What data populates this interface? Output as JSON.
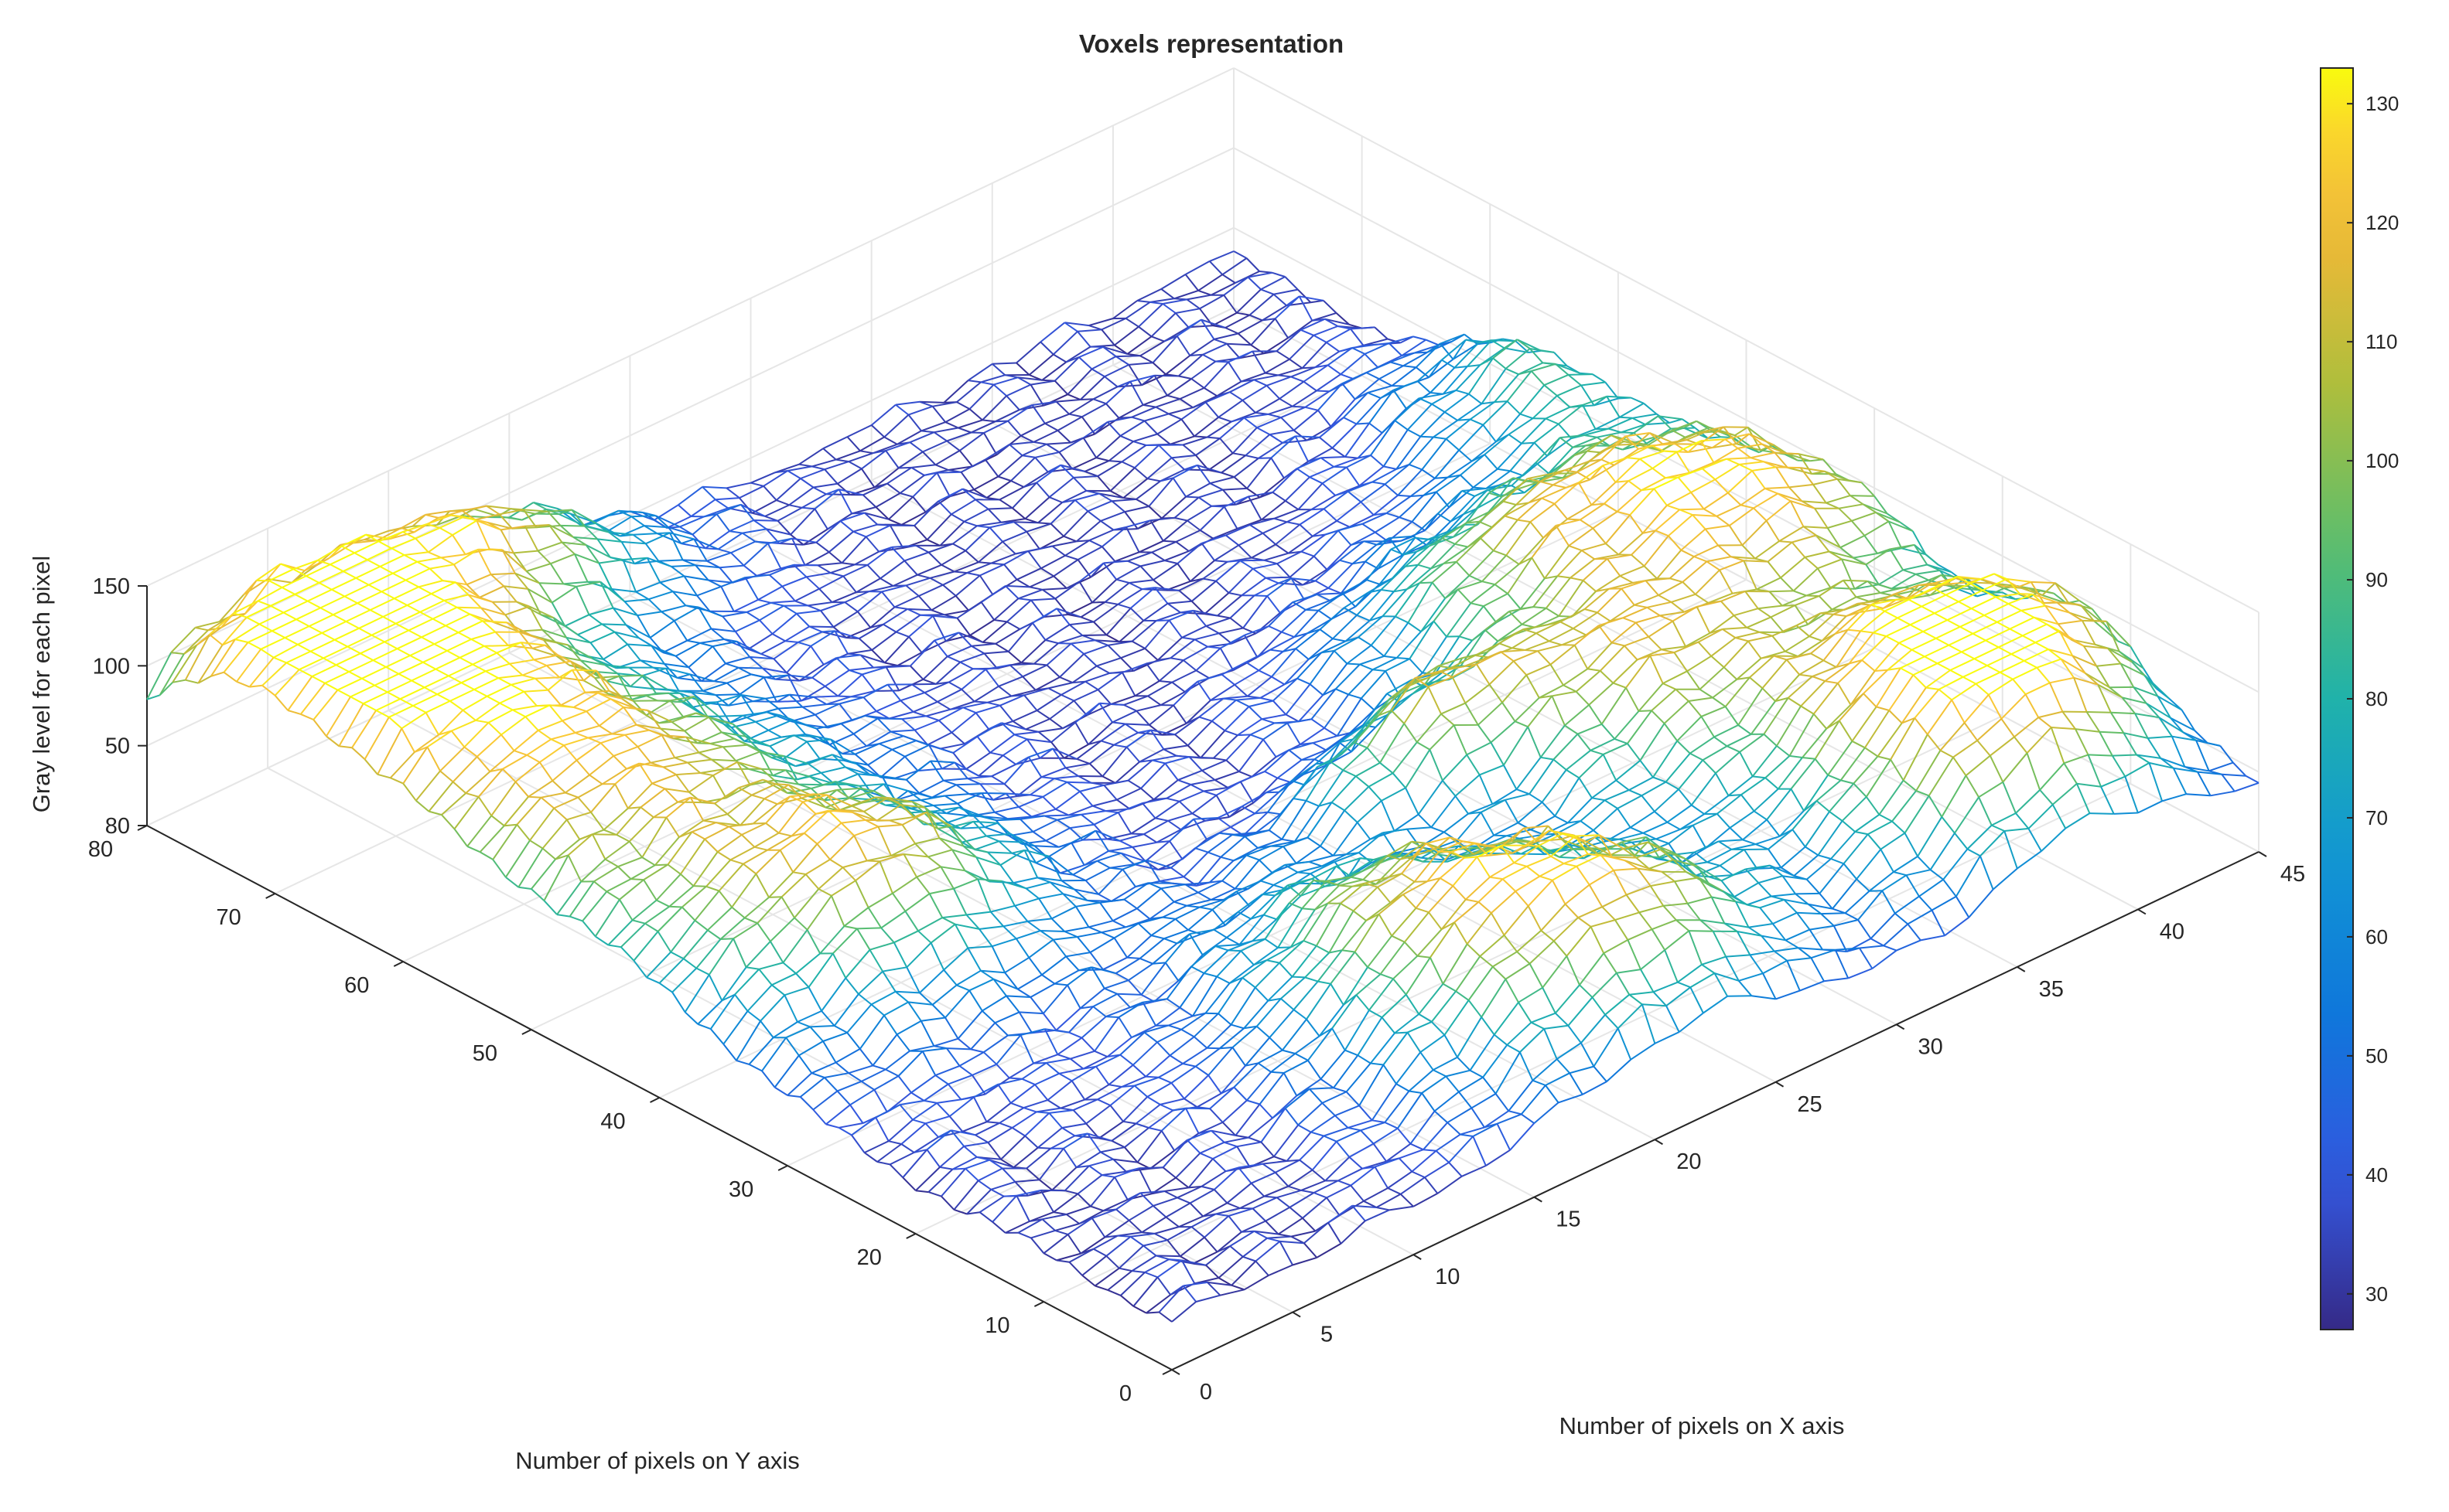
{
  "chart_data": {
    "type": "surface",
    "title": "Voxels representation",
    "xlabel": "Number of pixels on X axis",
    "ylabel": "Number of pixels on Y axis",
    "zlabel": "Gray level for each pixel",
    "xlim": [
      0,
      45
    ],
    "ylim": [
      0,
      80
    ],
    "zlim": [
      0,
      150
    ],
    "x_ticks": [
      "0",
      "5",
      "10",
      "15",
      "20",
      "25",
      "30",
      "35",
      "40",
      "45"
    ],
    "y_ticks": [
      "0",
      "10",
      "20",
      "30",
      "40",
      "50",
      "60",
      "70",
      "80"
    ],
    "z_ticks": [
      "50",
      "100",
      "150"
    ],
    "grid": true,
    "colorbar": {
      "range": [
        27,
        133
      ],
      "ticks": [
        "30",
        "40",
        "50",
        "60",
        "70",
        "80",
        "90",
        "100",
        "110",
        "120",
        "130"
      ],
      "colormap": "parula"
    },
    "mesh_resolution": {
      "x_cols": 45,
      "y_rows": 80
    },
    "surface_features": [
      {
        "x": 5,
        "y": 55,
        "amplitude": 85,
        "sx": 6,
        "sy": 14
      },
      {
        "x": 3,
        "y": 72,
        "amplitude": 80,
        "sx": 4,
        "sy": 8
      },
      {
        "x": 12,
        "y": 77,
        "amplitude": 70,
        "sx": 5,
        "sy": 5
      },
      {
        "x": 8,
        "y": 38,
        "amplitude": 50,
        "sx": 4,
        "sy": 5
      },
      {
        "x": 18,
        "y": 15,
        "amplitude": 70,
        "sx": 4,
        "sy": 8
      },
      {
        "x": 23,
        "y": 8,
        "amplitude": 65,
        "sx": 4,
        "sy": 6
      },
      {
        "x": 26,
        "y": 30,
        "amplitude": 60,
        "sx": 3,
        "sy": 3
      },
      {
        "x": 32,
        "y": 25,
        "amplitude": 65,
        "sx": 4,
        "sy": 6
      },
      {
        "x": 38,
        "y": 6,
        "amplitude": 80,
        "sx": 4,
        "sy": 5
      },
      {
        "x": 40,
        "y": 14,
        "amplitude": 85,
        "sx": 5,
        "sy": 5
      },
      {
        "x": 41,
        "y": 34,
        "amplitude": 90,
        "sx": 5,
        "sy": 9
      },
      {
        "x": 44,
        "y": 55,
        "amplitude": 45,
        "sx": 3,
        "sy": 6
      },
      {
        "x": 34,
        "y": 40,
        "amplitude": 40,
        "sx": 4,
        "sy": 5
      }
    ],
    "base_level": 30
  }
}
